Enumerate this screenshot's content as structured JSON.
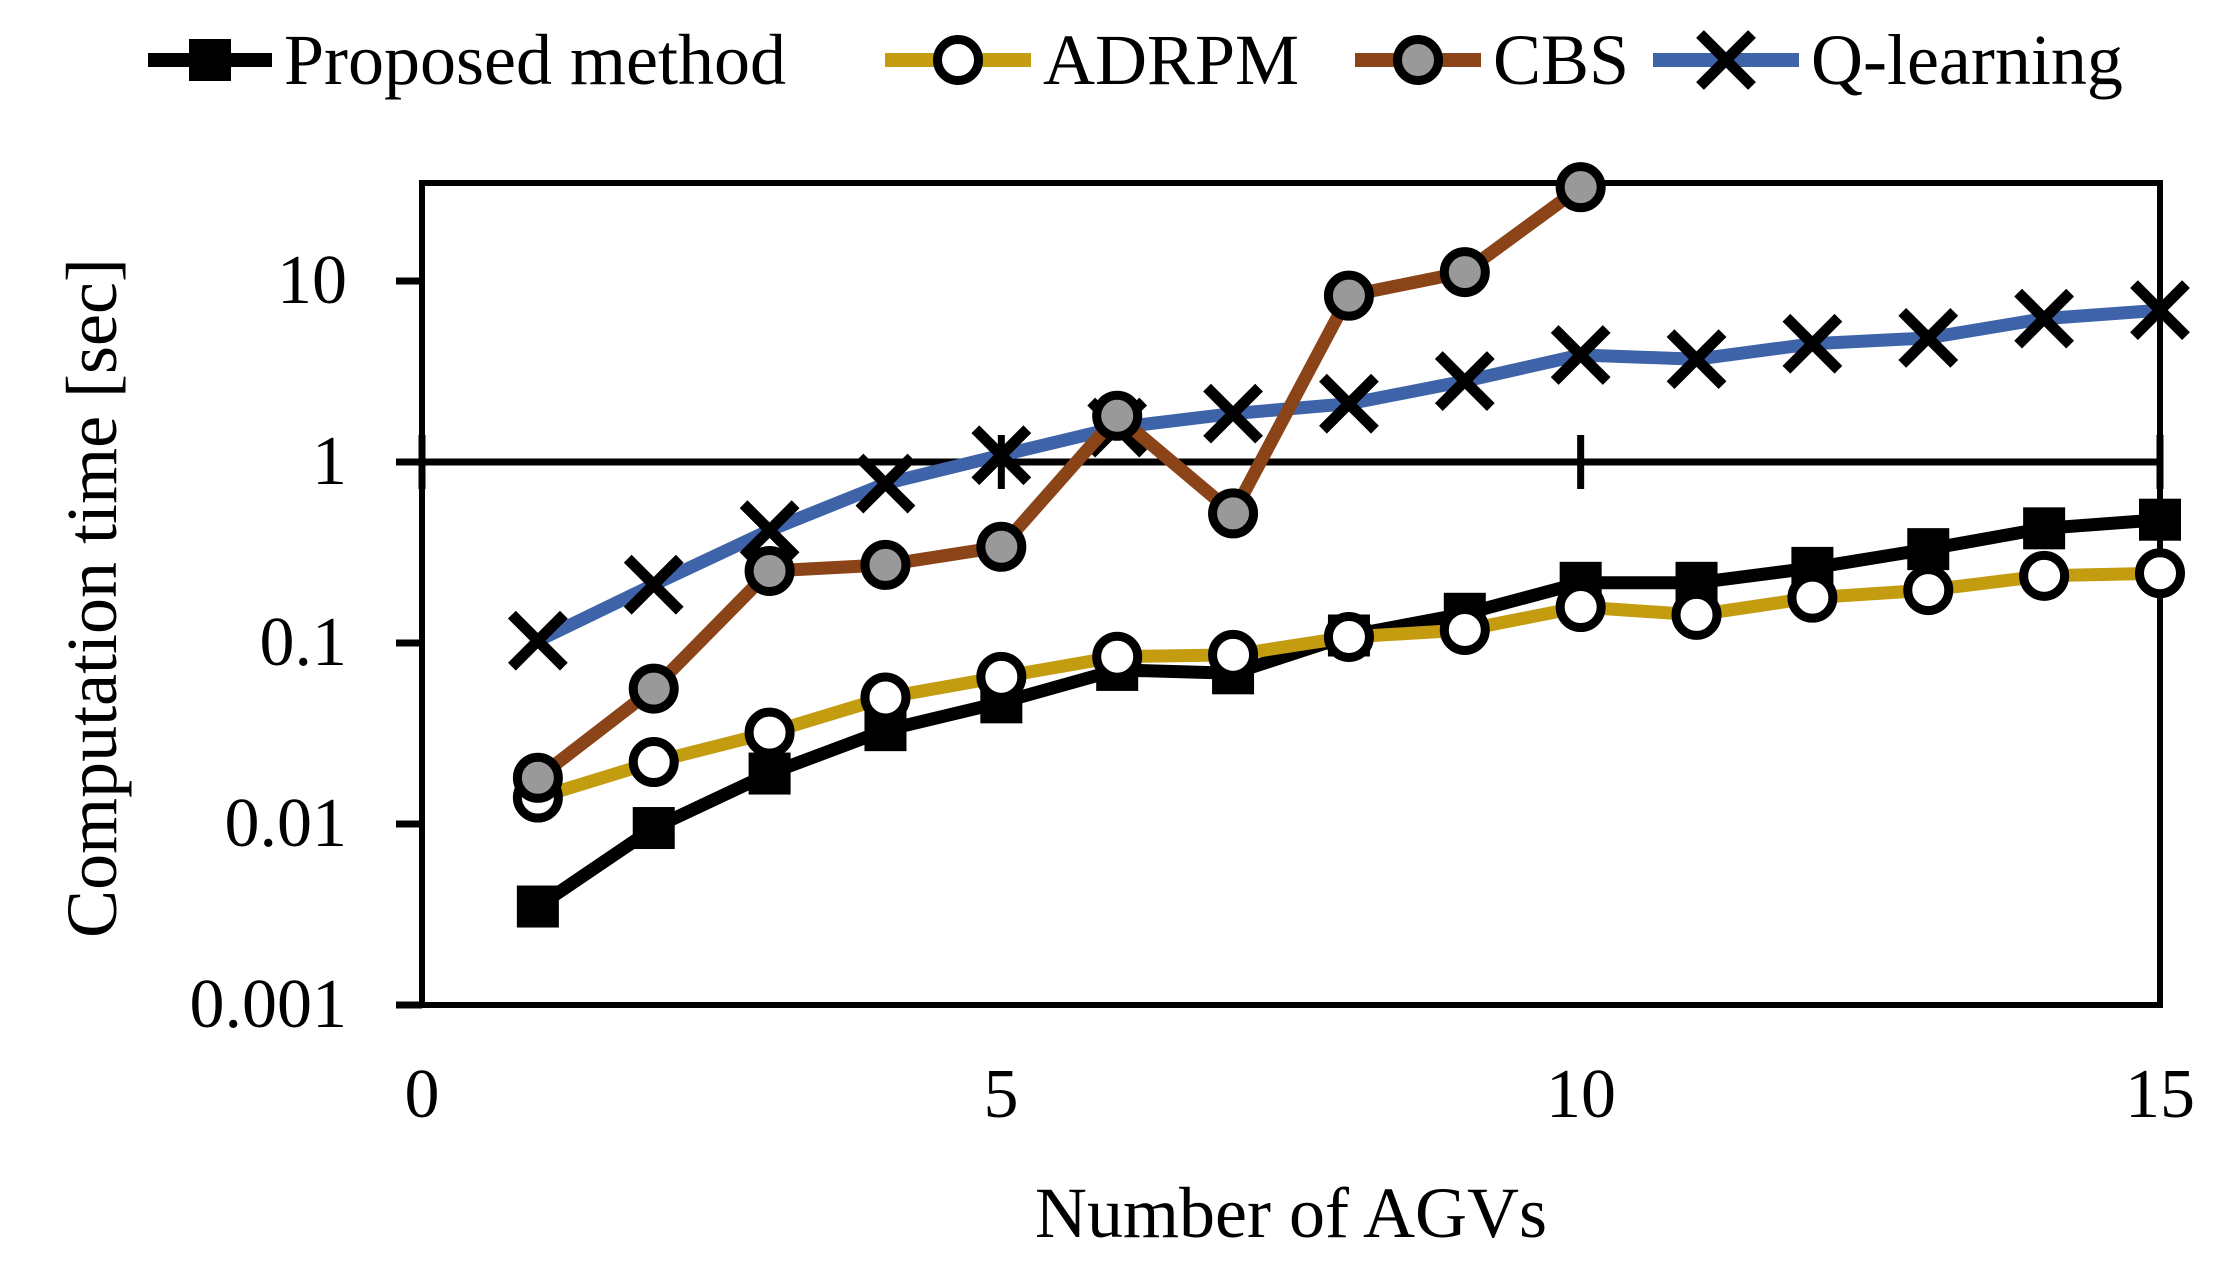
{
  "y_axis": {
    "title": "Computation time [sec]",
    "tick_labels": [
      "10",
      "1",
      "0.1",
      "0.01",
      "0.001"
    ]
  },
  "x_axis": {
    "title": "Number of AGVs",
    "tick_labels": [
      "0",
      "5",
      "10",
      "15"
    ]
  },
  "colors": {
    "proposed": "#000000",
    "adrpm": "#C39C10",
    "cbs": "#8B4318",
    "qlearning": "#3E63A8",
    "marker_gray_fill": "#999999",
    "axis": "#000000"
  },
  "chart_data": {
    "type": "line",
    "title": "",
    "xlabel": "Number of AGVs",
    "ylabel": "Computation time [sec]",
    "x": [
      1,
      2,
      3,
      4,
      5,
      6,
      7,
      8,
      9,
      10,
      11,
      12,
      13,
      14,
      15
    ],
    "x_ticks": [
      0,
      5,
      10,
      15
    ],
    "y_ticks": [
      10,
      1,
      0.1,
      0.01,
      0.001
    ],
    "y_scale": "log",
    "xlim": [
      0,
      15
    ],
    "ylim": [
      0.001,
      35
    ],
    "grid": "single horizontal line at y=1 (category axis crosses at 1, labels low)",
    "legend_position": "top",
    "series": [
      {
        "name": "Proposed method",
        "color": "#000000",
        "marker": "filled-square",
        "values": [
          0.0035,
          0.0095,
          0.019,
          0.033,
          0.047,
          0.071,
          0.068,
          0.11,
          0.145,
          0.215,
          0.215,
          0.26,
          0.33,
          0.43,
          0.48
        ]
      },
      {
        "name": "ADRPM",
        "color": "#C39C10",
        "marker": "open-circle",
        "values": [
          0.014,
          0.022,
          0.032,
          0.05,
          0.065,
          0.084,
          0.086,
          0.108,
          0.118,
          0.158,
          0.143,
          0.178,
          0.196,
          0.235,
          0.243
        ]
      },
      {
        "name": "CBS",
        "color": "#8B4318",
        "marker": "gray-circle",
        "values": [
          0.018,
          0.056,
          0.25,
          0.27,
          0.34,
          1.8,
          0.52,
          8.3,
          11.2,
          33,
          null,
          null,
          null,
          null,
          null
        ]
      },
      {
        "name": "Q-learning",
        "color": "#3E63A8",
        "marker": "x",
        "values": [
          0.103,
          0.21,
          0.42,
          0.76,
          1.09,
          1.55,
          1.85,
          2.1,
          2.8,
          3.9,
          3.7,
          4.5,
          4.85,
          6.2,
          6.9
        ]
      }
    ]
  }
}
